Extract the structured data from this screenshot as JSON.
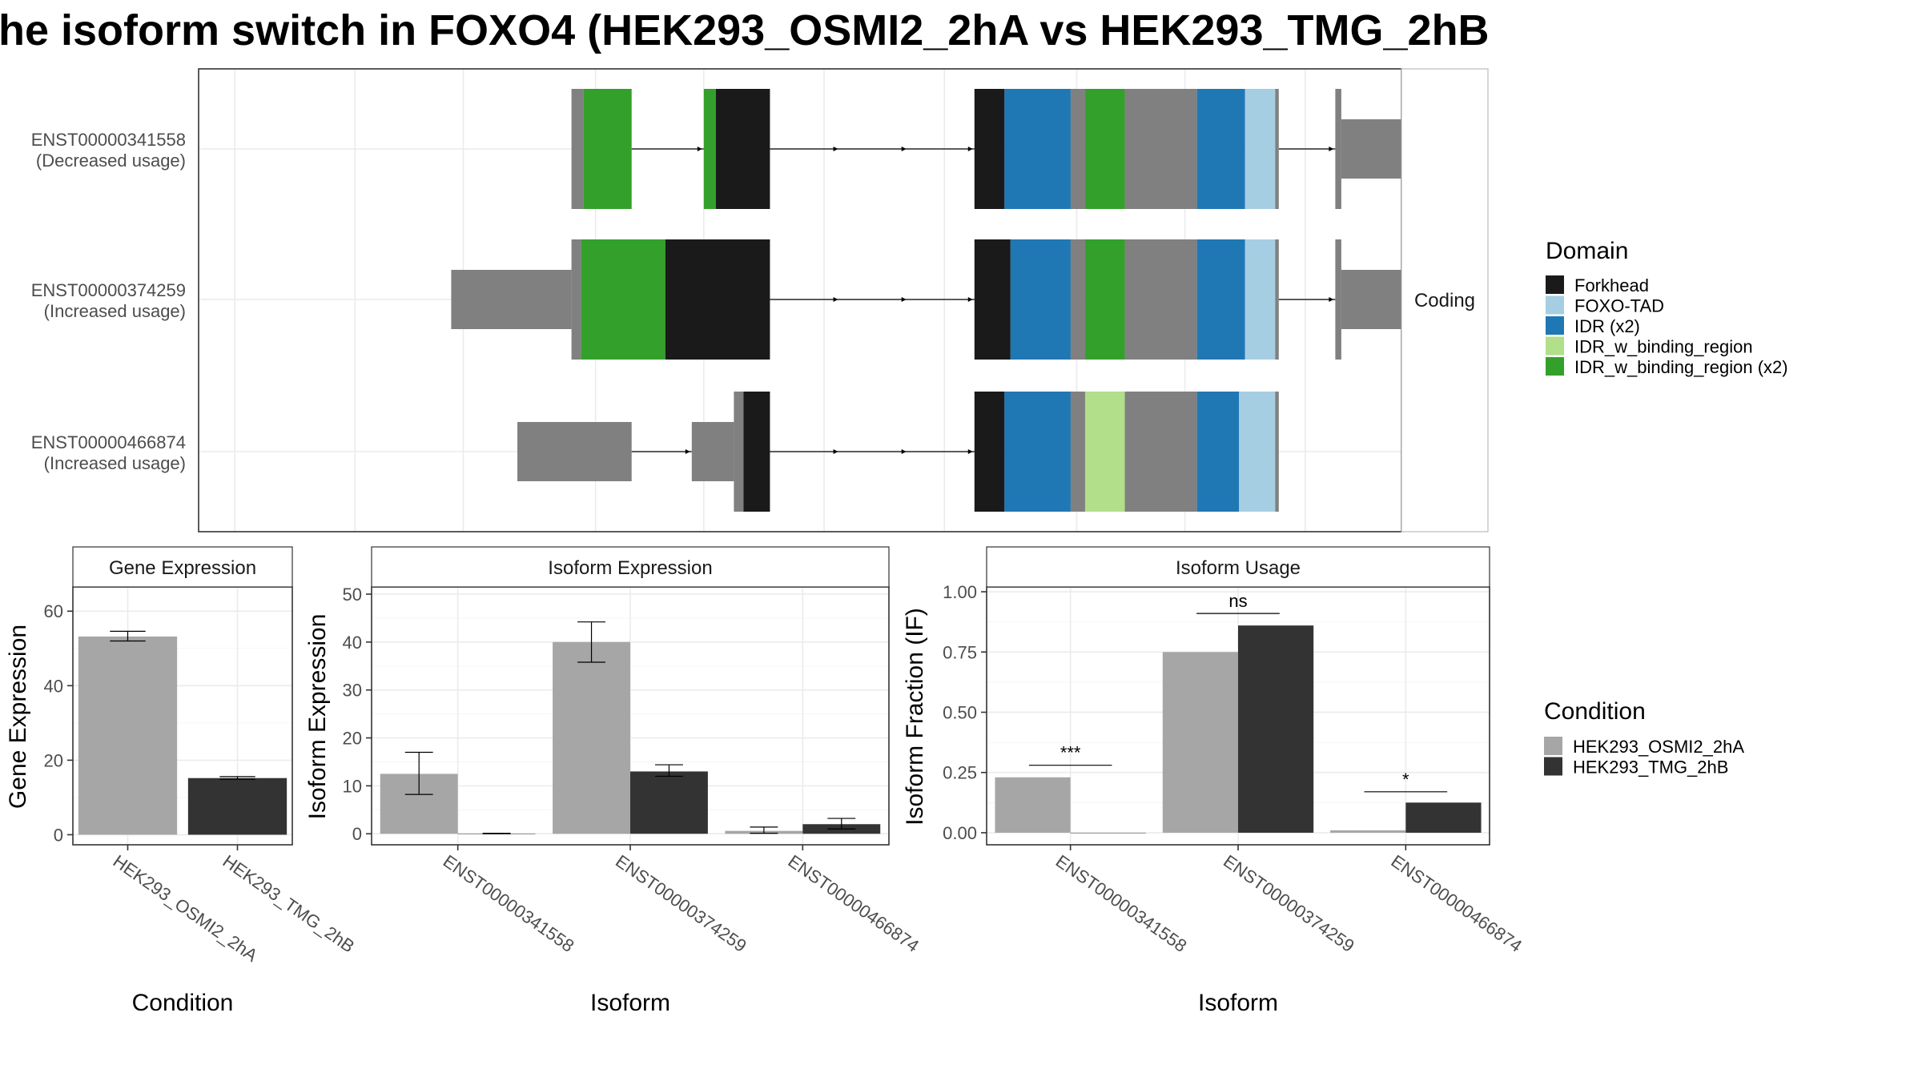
{
  "title": "he isoform switch in FOXO4 (HEK293_OSMI2_2hA vs HEK293_TMG_2hB",
  "colors": {
    "Forkhead": "#1a1a1a",
    "FOXO-TAD": "#a6cee3",
    "IDR (x2)": "#1f78b4",
    "IDR_w_binding_region": "#b2df8a",
    "IDR_w_binding_region (x2)": "#33a02c",
    "none": "#808080",
    "HEK293_OSMI2_2hA": "#a6a6a6",
    "HEK293_TMG_2hB": "#333333"
  },
  "structure": {
    "strip_label": "Coding",
    "isoforms": [
      {
        "id": "ENST00000341558",
        "usage": "(Decreased usage)",
        "segments": [
          {
            "start": 0.31,
            "end": 0.32,
            "domain": "none",
            "coding": true
          },
          {
            "start": 0.32,
            "end": 0.36,
            "domain": "IDR_w_binding_region (x2)",
            "coding": true
          },
          {
            "start": 0.42,
            "end": 0.43,
            "domain": "IDR_w_binding_region (x2)",
            "coding": true
          },
          {
            "start": 0.43,
            "end": 0.475,
            "domain": "Forkhead",
            "coding": true
          },
          {
            "start": 0.645,
            "end": 0.67,
            "domain": "Forkhead",
            "coding": true
          },
          {
            "start": 0.67,
            "end": 0.725,
            "domain": "IDR (x2)",
            "coding": true
          },
          {
            "start": 0.725,
            "end": 0.737,
            "domain": "none",
            "coding": true
          },
          {
            "start": 0.737,
            "end": 0.77,
            "domain": "IDR_w_binding_region (x2)",
            "coding": true
          },
          {
            "start": 0.77,
            "end": 0.83,
            "domain": "none",
            "coding": true
          },
          {
            "start": 0.83,
            "end": 0.87,
            "domain": "IDR (x2)",
            "coding": true
          },
          {
            "start": 0.87,
            "end": 0.895,
            "domain": "FOXO-TAD",
            "coding": true
          },
          {
            "start": 0.895,
            "end": 0.898,
            "domain": "none",
            "coding": true
          },
          {
            "start": 0.945,
            "end": 0.95,
            "domain": "none",
            "coding": true
          },
          {
            "start": 0.95,
            "end": 1.055,
            "domain": "none",
            "coding": false
          }
        ]
      },
      {
        "id": "ENST00000374259",
        "usage": "(Increased usage)",
        "segments": [
          {
            "start": 0.21,
            "end": 0.31,
            "domain": "none",
            "coding": false
          },
          {
            "start": 0.31,
            "end": 0.318,
            "domain": "none",
            "coding": true
          },
          {
            "start": 0.318,
            "end": 0.388,
            "domain": "IDR_w_binding_region (x2)",
            "coding": true
          },
          {
            "start": 0.388,
            "end": 0.475,
            "domain": "Forkhead",
            "coding": true
          },
          {
            "start": 0.645,
            "end": 0.675,
            "domain": "Forkhead",
            "coding": true
          },
          {
            "start": 0.675,
            "end": 0.725,
            "domain": "IDR (x2)",
            "coding": true
          },
          {
            "start": 0.725,
            "end": 0.737,
            "domain": "none",
            "coding": true
          },
          {
            "start": 0.737,
            "end": 0.77,
            "domain": "IDR_w_binding_region (x2)",
            "coding": true
          },
          {
            "start": 0.77,
            "end": 0.83,
            "domain": "none",
            "coding": true
          },
          {
            "start": 0.83,
            "end": 0.87,
            "domain": "IDR (x2)",
            "coding": true
          },
          {
            "start": 0.87,
            "end": 0.895,
            "domain": "FOXO-TAD",
            "coding": true
          },
          {
            "start": 0.895,
            "end": 0.898,
            "domain": "none",
            "coding": true
          },
          {
            "start": 0.945,
            "end": 0.95,
            "domain": "none",
            "coding": true
          },
          {
            "start": 0.95,
            "end": 1.055,
            "domain": "none",
            "coding": false
          }
        ]
      },
      {
        "id": "ENST00000466874",
        "usage": "(Increased usage)",
        "segments": [
          {
            "start": 0.265,
            "end": 0.36,
            "domain": "none",
            "coding": false
          },
          {
            "start": 0.41,
            "end": 0.445,
            "domain": "none",
            "coding": false
          },
          {
            "start": 0.445,
            "end": 0.453,
            "domain": "none",
            "coding": true
          },
          {
            "start": 0.453,
            "end": 0.475,
            "domain": "Forkhead",
            "coding": true
          },
          {
            "start": 0.645,
            "end": 0.67,
            "domain": "Forkhead",
            "coding": true
          },
          {
            "start": 0.67,
            "end": 0.725,
            "domain": "IDR (x2)",
            "coding": true
          },
          {
            "start": 0.725,
            "end": 0.737,
            "domain": "none",
            "coding": true
          },
          {
            "start": 0.737,
            "end": 0.77,
            "domain": "IDR_w_binding_region",
            "coding": true
          },
          {
            "start": 0.77,
            "end": 0.83,
            "domain": "none",
            "coding": true
          },
          {
            "start": 0.83,
            "end": 0.865,
            "domain": "IDR (x2)",
            "coding": true
          },
          {
            "start": 0.865,
            "end": 0.895,
            "domain": "FOXO-TAD",
            "coding": true
          },
          {
            "start": 0.895,
            "end": 0.898,
            "domain": "none",
            "coding": true
          }
        ]
      }
    ]
  },
  "legend_domain": {
    "title": "Domain",
    "items": [
      "Forkhead",
      "FOXO-TAD",
      "IDR (x2)",
      "IDR_w_binding_region",
      "IDR_w_binding_region (x2)"
    ]
  },
  "legend_condition": {
    "title": "Condition",
    "items": [
      "HEK293_OSMI2_2hA",
      "HEK293_TMG_2hB"
    ]
  },
  "chart_data": [
    {
      "type": "bar",
      "title": "Gene Expression",
      "xlabel": "Condition",
      "ylabel": "Gene Expression",
      "categories": [
        "HEK293_OSMI2_2hA",
        "HEK293_TMG_2hB"
      ],
      "values": [
        53.2,
        15.2
      ],
      "errors": [
        [
          52.0,
          54.6
        ],
        [
          14.9,
          15.6
        ]
      ],
      "ylim": [
        -2.7,
        66.5
      ],
      "yticks": [
        0,
        20,
        40,
        60
      ],
      "grid": true
    },
    {
      "type": "bar",
      "title": "Isoform Expression",
      "xlabel": "Isoform",
      "ylabel": "Isoform Expression",
      "categories": [
        "ENST00000341558",
        "ENST00000374259",
        "ENST00000466874"
      ],
      "series": [
        {
          "name": "HEK293_OSMI2_2hA",
          "values": [
            12.5,
            40.0,
            0.6
          ],
          "errors": [
            [
              8.2,
              17.0
            ],
            [
              35.8,
              44.2
            ],
            [
              0.1,
              1.4
            ]
          ]
        },
        {
          "name": "HEK293_TMG_2hB",
          "values": [
            0.05,
            13.0,
            2.0
          ],
          "errors": [
            [
              0.0,
              0.1
            ],
            [
              12.0,
              14.4
            ],
            [
              1.0,
              3.2
            ]
          ]
        }
      ],
      "ylim": [
        -2.3,
        51.5
      ],
      "yticks": [
        0,
        10,
        20,
        30,
        40,
        50
      ],
      "grid": true
    },
    {
      "type": "bar",
      "title": "Isoform Usage",
      "xlabel": "Isoform",
      "ylabel": "Isoform Fraction (IF)",
      "categories": [
        "ENST00000341558",
        "ENST00000374259",
        "ENST00000466874"
      ],
      "series": [
        {
          "name": "HEK293_OSMI2_2hA",
          "values": [
            0.23,
            0.75,
            0.01
          ]
        },
        {
          "name": "HEK293_TMG_2hB",
          "values": [
            0.0,
            0.86,
            0.125
          ]
        }
      ],
      "significance": [
        "***",
        "ns",
        "*"
      ],
      "significance_y": [
        0.28,
        0.91,
        0.17
      ],
      "ylim": [
        -0.05,
        1.02
      ],
      "yticks": [
        "0.00",
        "0.25",
        "0.50",
        "0.75",
        "1.00"
      ],
      "grid": true
    }
  ]
}
